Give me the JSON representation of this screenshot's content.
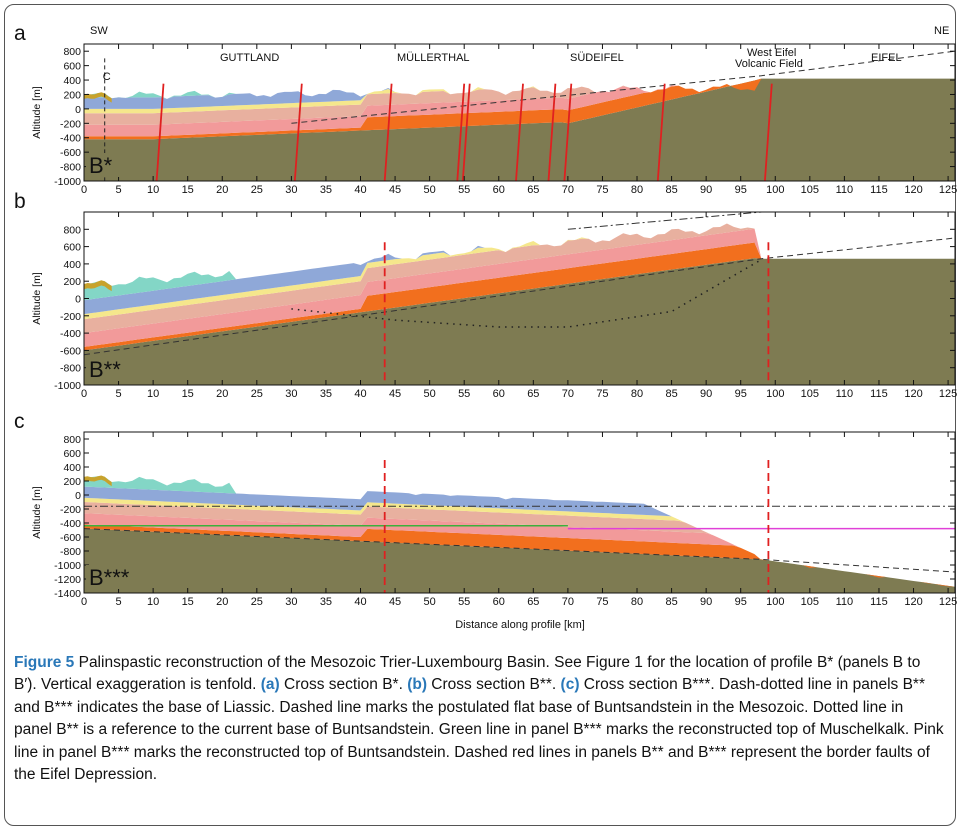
{
  "figure": {
    "orientation": {
      "left": "SW",
      "right": "NE"
    },
    "xaxis": {
      "label": "Distance along profile [km]",
      "ticks": [
        0,
        5,
        10,
        15,
        20,
        25,
        30,
        35,
        40,
        45,
        50,
        55,
        60,
        65,
        70,
        75,
        80,
        85,
        90,
        95,
        100,
        105,
        110,
        115,
        120,
        125
      ]
    },
    "panels": [
      {
        "id": "a",
        "label": "a",
        "ylabel": "Altitude [m]",
        "yticks": [
          800,
          600,
          400,
          200,
          0,
          -200,
          -400,
          -600,
          -800,
          -1000
        ],
        "ylim": [
          -1000,
          900
        ],
        "profile_tag": "B*",
        "marker": "C",
        "regions": [
          "GUTTLAND",
          "MÜLLERTHAL",
          "SÜDEIFEL",
          "West Eifel",
          "Volcanic Field",
          "EIFEL"
        ]
      },
      {
        "id": "b",
        "label": "b",
        "ylabel": "Altitude [m]",
        "yticks": [
          800,
          600,
          400,
          200,
          0,
          -200,
          -400,
          -600,
          -800,
          -1000
        ],
        "ylim": [
          -1000,
          1000
        ],
        "profile_tag": "B**"
      },
      {
        "id": "c",
        "label": "c",
        "ylabel": "Altitude [m]",
        "yticks": [
          800,
          600,
          400,
          200,
          0,
          -200,
          -400,
          -600,
          -800,
          -1000,
          -1200,
          -1400
        ],
        "ylim": [
          -1400,
          900
        ],
        "profile_tag": "B***"
      }
    ],
    "colors": {
      "basement": "#7e7b52",
      "buntsandstein": "#f26f1e",
      "muschelkalk_lower": "#f29a9a",
      "keuper": "#e8b09f",
      "liassic": "#8fa8d8",
      "keuper_yellow": "#f5e78c",
      "teal": "#83d6c6",
      "gold": "#c8a22c",
      "fault": "#e02020",
      "pink_line": "#e040d8",
      "green_line": "#3cb03c"
    }
  },
  "caption": {
    "label": "Figure 5",
    "text1": " Palinspastic reconstruction of the Mesozoic Trier-Luxembourg Basin. See Figure 1 for the location of profile B* (panels B to B′). Vertical exaggeration is tenfold. ",
    "ref_a": "(a)",
    "text_a": " Cross section B*. ",
    "ref_b": "(b)",
    "text_b": " Cross section B**. ",
    "ref_c": "(c)",
    "text_c": " Cross section B***. Dash-dotted line in panels B** and B*** indicates the base of Liassic. Dashed line marks the postulated flat base of Buntsandstein in the Mesozoic. Dotted line in panel B** is a reference to the current base of Buntsandstein. Green line in panel B*** marks the reconstructed top of Muschelkalk. Pink line in panel B*** marks the reconstructed top of Buntsandstein. Dashed red lines in panels B** and B*** represent the border faults of the Eifel Depression."
  }
}
